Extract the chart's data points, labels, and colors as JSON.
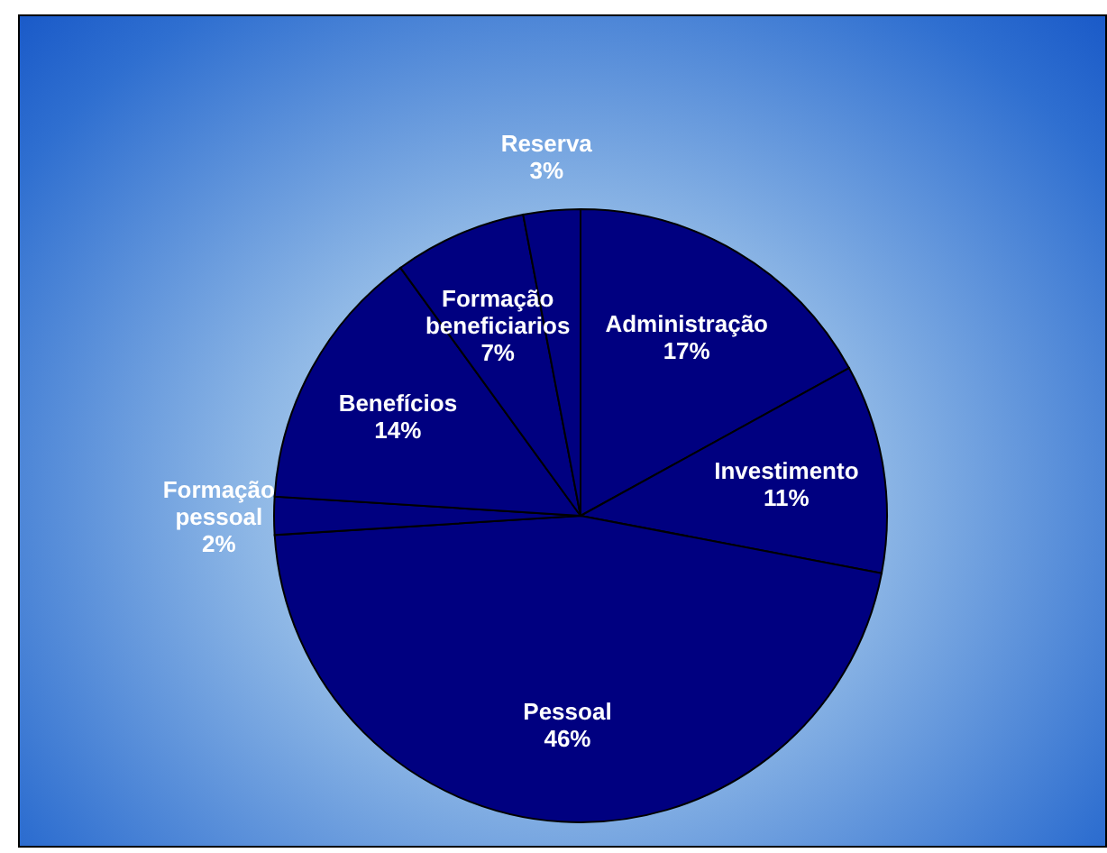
{
  "chart_data": {
    "type": "pie",
    "categories": [
      "Administração",
      "Investimento",
      "Pessoal",
      "Formação pessoal",
      "Benefícios",
      "Formação beneficiarios",
      "Reserva"
    ],
    "values": [
      17,
      11,
      46,
      2,
      14,
      7,
      3
    ],
    "value_labels": [
      "17%",
      "11%",
      "46%",
      "2%",
      "14%",
      "7%",
      "3%"
    ],
    "colors": [
      "#000080",
      "#000080",
      "#000080",
      "#000080",
      "#000080",
      "#000080",
      "#000080"
    ]
  }
}
